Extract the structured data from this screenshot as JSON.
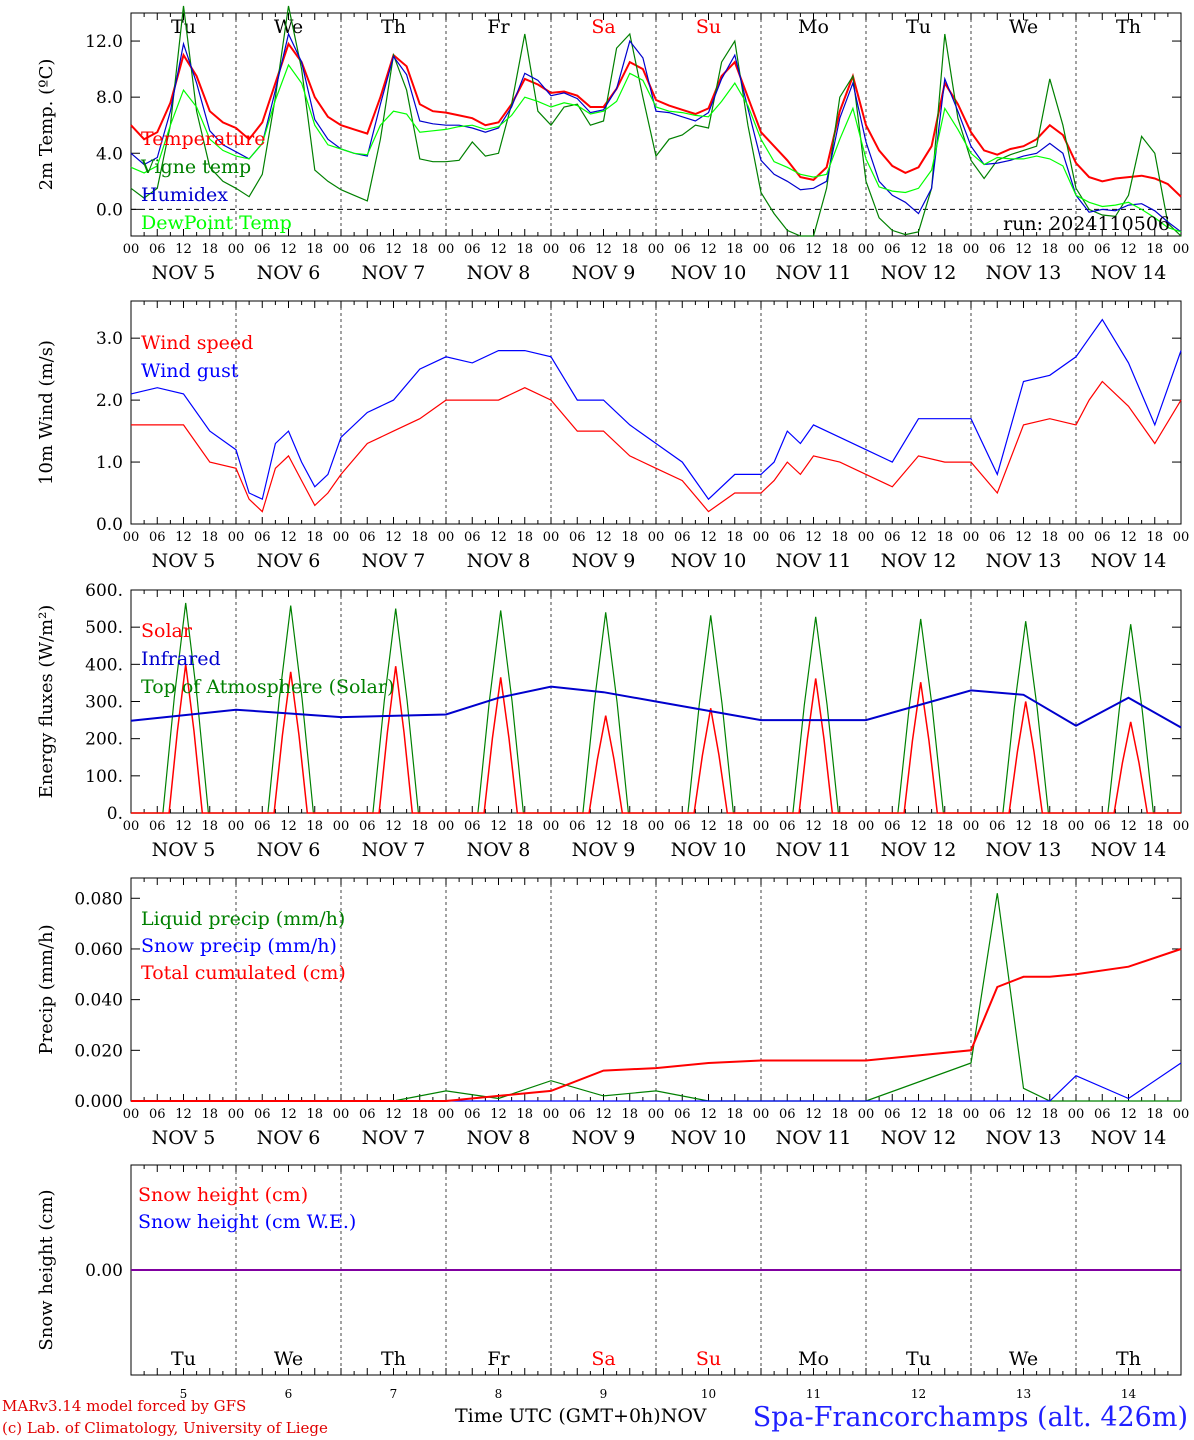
{
  "footer": {
    "model": "MARv3.14 model forced by GFS",
    "credit": "(c) Lab. of Climatology, University of Liege",
    "time_label": "Time UTC (GMT+0h)",
    "month": "NOV",
    "station": "Spa-Francorchamps (alt. 426m)"
  },
  "days": {
    "weekdays": [
      "Tu",
      "We",
      "Th",
      "Fr",
      "Sa",
      "Su",
      "Mo",
      "Tu",
      "We",
      "Th"
    ],
    "weekday_colors": [
      "#000000",
      "#000000",
      "#000000",
      "#000000",
      "#ff0000",
      "#ff0000",
      "#000000",
      "#000000",
      "#000000",
      "#000000"
    ],
    "dates": [
      "NOV  5",
      "NOV  6",
      "NOV  7",
      "NOV  8",
      "NOV  9",
      "NOV 10",
      "NOV 11",
      "NOV 12",
      "NOV 13",
      "NOV 14"
    ],
    "day_numbers": [
      "5",
      "6",
      "7",
      "8",
      "9",
      "10",
      "11",
      "12",
      "13",
      "14"
    ],
    "hour_ticks": [
      "00",
      "06",
      "12",
      "18"
    ],
    "end_tick": "00"
  },
  "chart_data": [
    {
      "type": "line",
      "ylabel": "2m Temp. (ºC)",
      "yticks": [
        "0.0",
        "4.0",
        "8.0",
        "12.0"
      ],
      "ytick_values": [
        0,
        4,
        8,
        12
      ],
      "ylim": [
        -1.9,
        14.0
      ],
      "zero_line": true,
      "annotation": "run: 2024110506",
      "x_hours": [
        0,
        3,
        6,
        9,
        12,
        15,
        18,
        21,
        24,
        27,
        30,
        33,
        36,
        39,
        42,
        45,
        48,
        51,
        54,
        57,
        60,
        63,
        66,
        69,
        72,
        75,
        78,
        81,
        84,
        87,
        90,
        93,
        96,
        99,
        102,
        105,
        108,
        111,
        114,
        117,
        120,
        123,
        126,
        129,
        132,
        135,
        138,
        141,
        144,
        147,
        150,
        153,
        156,
        159,
        162,
        165,
        168,
        171,
        174,
        177,
        180,
        183,
        186,
        189,
        192,
        195,
        198,
        201,
        204,
        207,
        210,
        213,
        216,
        219,
        222,
        225,
        228,
        231,
        234,
        237,
        240
      ],
      "series": [
        {
          "name": "Temperature",
          "color": "#ff0000",
          "values": [
            6.0,
            5.0,
            5.5,
            7.6,
            11.0,
            9.5,
            7.0,
            6.2,
            5.8,
            5.0,
            6.2,
            9.0,
            11.8,
            10.5,
            8.0,
            6.6,
            6.0,
            5.7,
            5.4,
            8.0,
            11.0,
            10.2,
            7.5,
            7.0,
            6.9,
            6.7,
            6.5,
            6.0,
            6.2,
            7.5,
            9.3,
            8.9,
            8.3,
            8.4,
            8.1,
            7.3,
            7.3,
            8.6,
            10.5,
            10.0,
            7.8,
            7.4,
            7.1,
            6.8,
            7.2,
            9.5,
            10.5,
            8.0,
            5.5,
            4.5,
            3.5,
            2.3,
            2.1,
            3.0,
            7.0,
            9.5,
            6.0,
            4.2,
            3.1,
            2.6,
            3.0,
            4.5,
            9.0,
            7.5,
            5.5,
            4.2,
            3.9,
            4.3,
            4.5,
            5.0,
            6.0,
            5.3,
            3.3,
            2.3,
            2.0,
            2.2,
            2.3,
            2.4,
            2.2,
            1.8,
            0.9
          ]
        },
        {
          "name": "Vigne temp",
          "color": "#008000",
          "values": [
            1.5,
            0.8,
            1.5,
            6.0,
            14.5,
            7.0,
            3.0,
            2.0,
            1.5,
            0.9,
            2.5,
            8.0,
            14.5,
            10.0,
            2.8,
            2.0,
            1.4,
            1.0,
            0.6,
            5.0,
            11.0,
            8.5,
            3.6,
            3.4,
            3.4,
            3.5,
            4.8,
            3.8,
            4.0,
            7.5,
            12.5,
            7.0,
            6.0,
            7.3,
            7.5,
            6.0,
            6.3,
            11.5,
            12.5,
            8.0,
            3.8,
            5.0,
            5.3,
            6.0,
            5.8,
            10.5,
            12.0,
            6.0,
            1.2,
            -0.3,
            -1.5,
            -1.9,
            -1.9,
            1.5,
            8.0,
            9.5,
            2.0,
            -0.6,
            -1.5,
            -1.8,
            -1.6,
            1.5,
            12.5,
            6.5,
            3.5,
            2.2,
            3.5,
            3.9,
            4.2,
            4.5,
            9.3,
            6.0,
            1.5,
            0.0,
            -0.4,
            -0.5,
            1.0,
            5.2,
            4.0,
            -1.0,
            -1.9
          ]
        },
        {
          "name": "Humidex",
          "color": "#0000cd",
          "values": [
            4.0,
            3.2,
            3.7,
            7.0,
            11.8,
            9.0,
            5.6,
            4.6,
            4.1,
            3.6,
            4.7,
            8.5,
            12.5,
            10.5,
            6.4,
            5.0,
            4.3,
            4.0,
            3.8,
            7.5,
            10.9,
            9.6,
            6.3,
            6.1,
            6.0,
            6.0,
            5.8,
            5.5,
            5.8,
            7.3,
            9.7,
            9.2,
            8.1,
            8.3,
            7.9,
            6.9,
            7.1,
            8.6,
            12.0,
            10.8,
            7.0,
            6.9,
            6.6,
            6.3,
            6.9,
            9.3,
            11.0,
            7.2,
            3.5,
            2.5,
            2.0,
            1.4,
            1.5,
            2.0,
            6.5,
            9.0,
            4.8,
            2.0,
            1.0,
            0.5,
            -0.3,
            1.5,
            9.3,
            7.0,
            4.5,
            3.2,
            3.3,
            3.5,
            3.8,
            4.0,
            4.7,
            4.0,
            1.0,
            -0.2,
            0.0,
            -0.1,
            0.3,
            0.4,
            -0.1,
            -0.9,
            -1.6
          ]
        },
        {
          "name": "DewPoint Temp",
          "color": "#00ff00",
          "values": [
            3.0,
            2.6,
            3.1,
            6.0,
            8.5,
            7.3,
            5.0,
            4.2,
            3.8,
            3.6,
            4.7,
            7.8,
            10.3,
            9.0,
            6.0,
            4.6,
            4.3,
            4.0,
            3.9,
            6.0,
            7.0,
            6.8,
            5.5,
            5.6,
            5.7,
            5.9,
            6.0,
            5.7,
            5.9,
            6.7,
            8.0,
            7.7,
            7.3,
            7.6,
            7.4,
            6.8,
            7.0,
            7.7,
            9.7,
            9.2,
            7.3,
            7.0,
            6.9,
            6.7,
            6.6,
            7.7,
            9.0,
            7.4,
            5.0,
            3.4,
            3.0,
            2.5,
            2.3,
            2.5,
            5.0,
            7.2,
            3.6,
            1.6,
            1.3,
            1.2,
            1.5,
            2.8,
            7.2,
            5.7,
            4.0,
            3.2,
            3.7,
            3.6,
            3.6,
            3.8,
            3.6,
            3.1,
            1.0,
            0.5,
            0.2,
            0.3,
            0.5,
            0.0,
            -0.6,
            -1.3,
            -1.6
          ]
        }
      ]
    },
    {
      "type": "line",
      "ylabel": "10m Wind (m/s)",
      "yticks": [
        "0.0",
        "1.0",
        "2.0",
        "3.0"
      ],
      "ytick_values": [
        0,
        1,
        2,
        3
      ],
      "ylim": [
        0.0,
        3.6
      ],
      "x_hours": [
        0,
        6,
        12,
        18,
        24,
        27,
        30,
        33,
        36,
        39,
        42,
        45,
        48,
        54,
        60,
        66,
        72,
        78,
        84,
        90,
        96,
        102,
        108,
        114,
        120,
        126,
        132,
        138,
        144,
        147,
        150,
        153,
        156,
        162,
        168,
        174,
        180,
        186,
        192,
        198,
        204,
        210,
        216,
        219,
        222,
        228,
        234,
        240
      ],
      "series": [
        {
          "name": "Wind speed",
          "color": "#ff0000",
          "values": [
            1.6,
            1.6,
            1.6,
            1.0,
            0.9,
            0.4,
            0.2,
            0.9,
            1.1,
            0.7,
            0.3,
            0.5,
            0.8,
            1.3,
            1.5,
            1.7,
            2.0,
            2.0,
            2.0,
            2.2,
            2.0,
            1.5,
            1.5,
            1.1,
            0.9,
            0.7,
            0.2,
            0.5,
            0.5,
            0.7,
            1.0,
            0.8,
            1.1,
            1.0,
            0.8,
            0.6,
            1.1,
            1.0,
            1.0,
            0.5,
            1.6,
            1.7,
            1.6,
            2.0,
            2.3,
            1.9,
            1.3,
            2.0
          ]
        },
        {
          "name": "Wind gust",
          "color": "#0000ff",
          "values": [
            2.1,
            2.2,
            2.1,
            1.5,
            1.2,
            0.5,
            0.4,
            1.3,
            1.5,
            1.0,
            0.6,
            0.8,
            1.4,
            1.8,
            2.0,
            2.5,
            2.7,
            2.6,
            2.8,
            2.8,
            2.7,
            2.0,
            2.0,
            1.6,
            1.3,
            1.0,
            0.4,
            0.8,
            0.8,
            1.0,
            1.5,
            1.3,
            1.6,
            1.4,
            1.2,
            1.0,
            1.7,
            1.7,
            1.7,
            0.8,
            2.3,
            2.4,
            2.7,
            3.0,
            3.3,
            2.6,
            1.6,
            2.8
          ]
        }
      ]
    },
    {
      "type": "line",
      "ylabel": "Energy fluxes (W/m²)",
      "yticks": [
        "0.",
        "100.",
        "200.",
        "300.",
        "400.",
        "500.",
        "600."
      ],
      "ytick_values": [
        0,
        100,
        200,
        300,
        400,
        500,
        600
      ],
      "ylim": [
        0,
        600
      ],
      "daily_peaks_hour": 12.5,
      "solar_peaks": [
        400,
        380,
        395,
        365,
        262,
        282,
        362,
        352,
        300,
        245
      ],
      "toa_peaks": [
        565,
        558,
        550,
        545,
        540,
        532,
        528,
        522,
        516,
        508
      ],
      "x_hours_ir": [
        0,
        24,
        48,
        72,
        84,
        96,
        108,
        120,
        144,
        168,
        192,
        204,
        216,
        228,
        240
      ],
      "series": [
        {
          "name": "Solar",
          "color": "#ff0000"
        },
        {
          "name": "Infrared",
          "color": "#0000cd",
          "values": [
            248,
            278,
            258,
            265,
            310,
            340,
            325,
            300,
            250,
            250,
            330,
            318,
            235,
            310,
            230
          ]
        },
        {
          "name": "Top of Atmosphere (Solar)",
          "color": "#008000"
        }
      ]
    },
    {
      "type": "line",
      "ylabel": "Precip (mm/h)",
      "yticks": [
        "0.000",
        "0.020",
        "0.040",
        "0.060",
        "0.080"
      ],
      "ytick_values": [
        0,
        0.02,
        0.04,
        0.06,
        0.08
      ],
      "ylim": [
        0,
        0.088
      ],
      "x_hours": [
        0,
        60,
        72,
        84,
        96,
        108,
        120,
        132,
        144,
        168,
        192,
        198,
        204,
        210,
        216,
        228,
        240
      ],
      "series": [
        {
          "name": "Liquid precip (mm/h)",
          "color": "#008000",
          "values": [
            0,
            0,
            0.004,
            0.001,
            0.008,
            0.002,
            0.004,
            0,
            0,
            0,
            0.015,
            0.082,
            0.005,
            0,
            0,
            0,
            0
          ]
        },
        {
          "name": "Snow precip (mm/h)",
          "color": "#0000ff",
          "values": [
            0,
            0,
            0,
            0,
            0,
            0,
            0,
            0,
            0,
            0,
            0,
            0,
            0,
            0,
            0.01,
            0.001,
            0.015
          ]
        },
        {
          "name": "Total cumulated (cm)",
          "color": "#ff0000",
          "values": [
            0,
            0,
            0,
            0.002,
            0.004,
            0.012,
            0.013,
            0.015,
            0.016,
            0.016,
            0.02,
            0.045,
            0.049,
            0.049,
            0.05,
            0.053,
            0.06
          ]
        }
      ]
    },
    {
      "type": "line",
      "ylabel": "Snow height (cm)",
      "yticks": [
        "0.00"
      ],
      "ytick_values": [
        0
      ],
      "ylim": [
        -1,
        1
      ],
      "series": [
        {
          "name": "Snow height (cm)",
          "color": "#ff0000",
          "values": [
            0,
            0
          ]
        },
        {
          "name": "Snow height (cm W.E.)",
          "color": "#0000ff",
          "values": [
            0,
            0
          ]
        }
      ]
    }
  ]
}
